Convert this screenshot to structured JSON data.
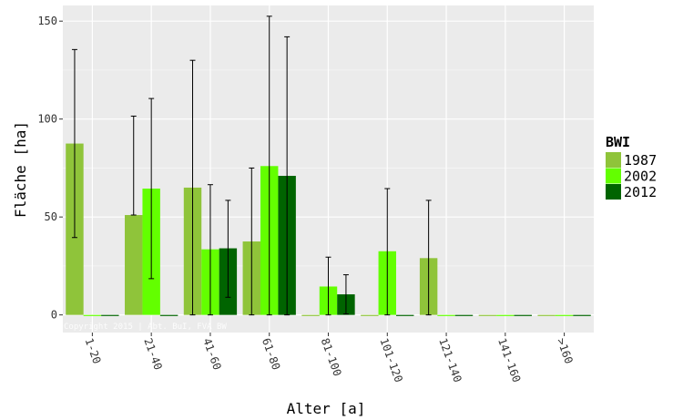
{
  "chart_data": {
    "type": "bar",
    "xlabel": "Alter [a]",
    "ylabel": "Fläche [ha]",
    "ylim": [
      -9,
      158
    ],
    "yticks": [
      0,
      50,
      100,
      150
    ],
    "grid": true,
    "legend_placement": "right",
    "categories": [
      "1-20",
      "21-40",
      "41-60",
      "61-80",
      "81-100",
      "101-120",
      "121-140",
      "141-160",
      ">160"
    ],
    "legend_title": "BWI",
    "series": [
      {
        "name": "1987",
        "color": "#8fc43a",
        "values": [
          87.5,
          51,
          65,
          37.5,
          0,
          0,
          29,
          0,
          0
        ],
        "err_low": [
          39.5,
          null,
          0,
          0,
          null,
          null,
          0,
          null,
          null
        ],
        "err_high": [
          135.5,
          101.5,
          130,
          75,
          null,
          null,
          58.5,
          null,
          null
        ]
      },
      {
        "name": "2002",
        "color": "#63ff00",
        "values": [
          0,
          64.5,
          33.5,
          76,
          14.5,
          32.5,
          0,
          0,
          0
        ],
        "err_low": [
          null,
          18.5,
          0,
          0,
          0,
          0,
          null,
          null,
          null
        ],
        "err_high": [
          null,
          110.5,
          66.5,
          152.5,
          29.5,
          64.5,
          null,
          null,
          null
        ]
      },
      {
        "name": "2012",
        "color": "#006400",
        "values": [
          0,
          0,
          34,
          71,
          10.5,
          0,
          0,
          0,
          0
        ],
        "err_low": [
          null,
          null,
          9,
          0,
          0.5,
          null,
          null,
          null,
          null
        ],
        "err_high": [
          null,
          null,
          58.5,
          142,
          20.5,
          null,
          null,
          null,
          null
        ]
      }
    ],
    "watermark": "Copyright 2015 | Abt. BuI, FVA BW"
  },
  "colors": {
    "panel_background": "#ebebeb",
    "grid_major": "#ffffff",
    "grid_minor": "#f5f5f5",
    "text": "#333333",
    "axis_title": "#000000"
  }
}
